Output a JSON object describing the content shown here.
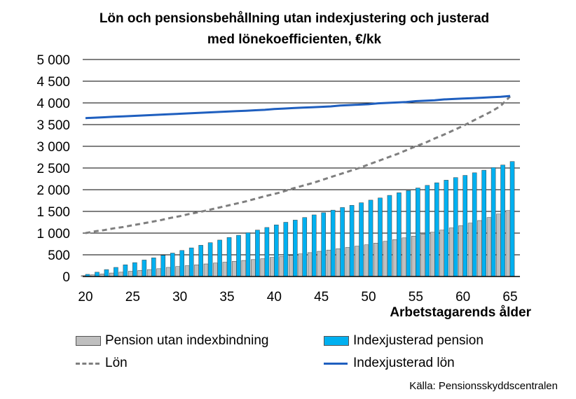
{
  "chart_data": {
    "type": "bar",
    "title_line1": "Lön och pensionsbehållning utan indexjustering och justerad",
    "title_line2": "med lönekoefficienten, €/kk",
    "xlabel": "Arbetstagarends ålder",
    "ylabel": "",
    "ylim": [
      0,
      5000
    ],
    "yticks": [
      "0",
      "500",
      "1 000",
      "1 500",
      "2 000",
      "2 500",
      "3 000",
      "3 500",
      "4 000",
      "4 500",
      "5 000"
    ],
    "xticks": [
      "20",
      "25",
      "30",
      "35",
      "40",
      "45",
      "50",
      "55",
      "60",
      "65"
    ],
    "x": [
      20,
      21,
      22,
      23,
      24,
      25,
      26,
      27,
      28,
      29,
      30,
      31,
      32,
      33,
      34,
      35,
      36,
      37,
      38,
      39,
      40,
      41,
      42,
      43,
      44,
      45,
      46,
      47,
      48,
      49,
      50,
      51,
      52,
      53,
      54,
      55,
      56,
      57,
      58,
      59,
      60,
      61,
      62,
      63,
      64,
      65
    ],
    "grid": "horizontal",
    "series": [
      {
        "name": "Pension utan indexbindning",
        "kind": "bar",
        "color": "#bfbfbf",
        "values": [
          20,
          40,
          60,
          80,
          100,
          120,
          140,
          160,
          180,
          210,
          230,
          250,
          270,
          290,
          310,
          330,
          350,
          370,
          390,
          410,
          440,
          460,
          490,
          520,
          550,
          580,
          610,
          640,
          670,
          700,
          730,
          770,
          810,
          850,
          890,
          930,
          980,
          1020,
          1070,
          1120,
          1170,
          1230,
          1290,
          1360,
          1440,
          1520
        ]
      },
      {
        "name": "Indexjusterad pension",
        "kind": "bar",
        "color": "#00b0f0",
        "values": [
          50,
          100,
          160,
          210,
          270,
          320,
          380,
          430,
          490,
          540,
          600,
          660,
          720,
          780,
          840,
          900,
          950,
          1010,
          1070,
          1130,
          1190,
          1250,
          1300,
          1360,
          1420,
          1470,
          1530,
          1590,
          1640,
          1700,
          1760,
          1810,
          1870,
          1930,
          1980,
          2040,
          2100,
          2160,
          2220,
          2280,
          2330,
          2390,
          2450,
          2510,
          2570,
          2650
        ]
      },
      {
        "name": "Lön",
        "kind": "line",
        "dashed": true,
        "color": "#7f7f7f",
        "values": [
          1000,
          1040,
          1070,
          1110,
          1140,
          1180,
          1220,
          1260,
          1300,
          1350,
          1390,
          1440,
          1480,
          1530,
          1580,
          1630,
          1680,
          1730,
          1790,
          1850,
          1900,
          1960,
          2030,
          2090,
          2150,
          2220,
          2290,
          2360,
          2430,
          2500,
          2580,
          2660,
          2740,
          2820,
          2910,
          3000,
          3080,
          3180,
          3270,
          3370,
          3470,
          3580,
          3690,
          3800,
          3930,
          4150
        ]
      },
      {
        "name": "Indexjusterad lön",
        "kind": "line",
        "dashed": false,
        "color": "#1f5fbf",
        "values": [
          3650,
          3660,
          3670,
          3680,
          3690,
          3700,
          3710,
          3720,
          3730,
          3740,
          3750,
          3760,
          3770,
          3780,
          3790,
          3800,
          3810,
          3820,
          3830,
          3840,
          3860,
          3870,
          3880,
          3890,
          3900,
          3910,
          3920,
          3940,
          3950,
          3960,
          3970,
          3990,
          4000,
          4010,
          4020,
          4040,
          4050,
          4060,
          4080,
          4090,
          4100,
          4110,
          4120,
          4130,
          4140,
          4160
        ]
      }
    ],
    "legend": {
      "placement": "bottom",
      "items": [
        "Pension utan indexbindning",
        "Indexjusterad pension",
        "Lön",
        "Indexjusterad lön"
      ]
    },
    "source": "Källa: Pensionsskyddscentralen"
  }
}
